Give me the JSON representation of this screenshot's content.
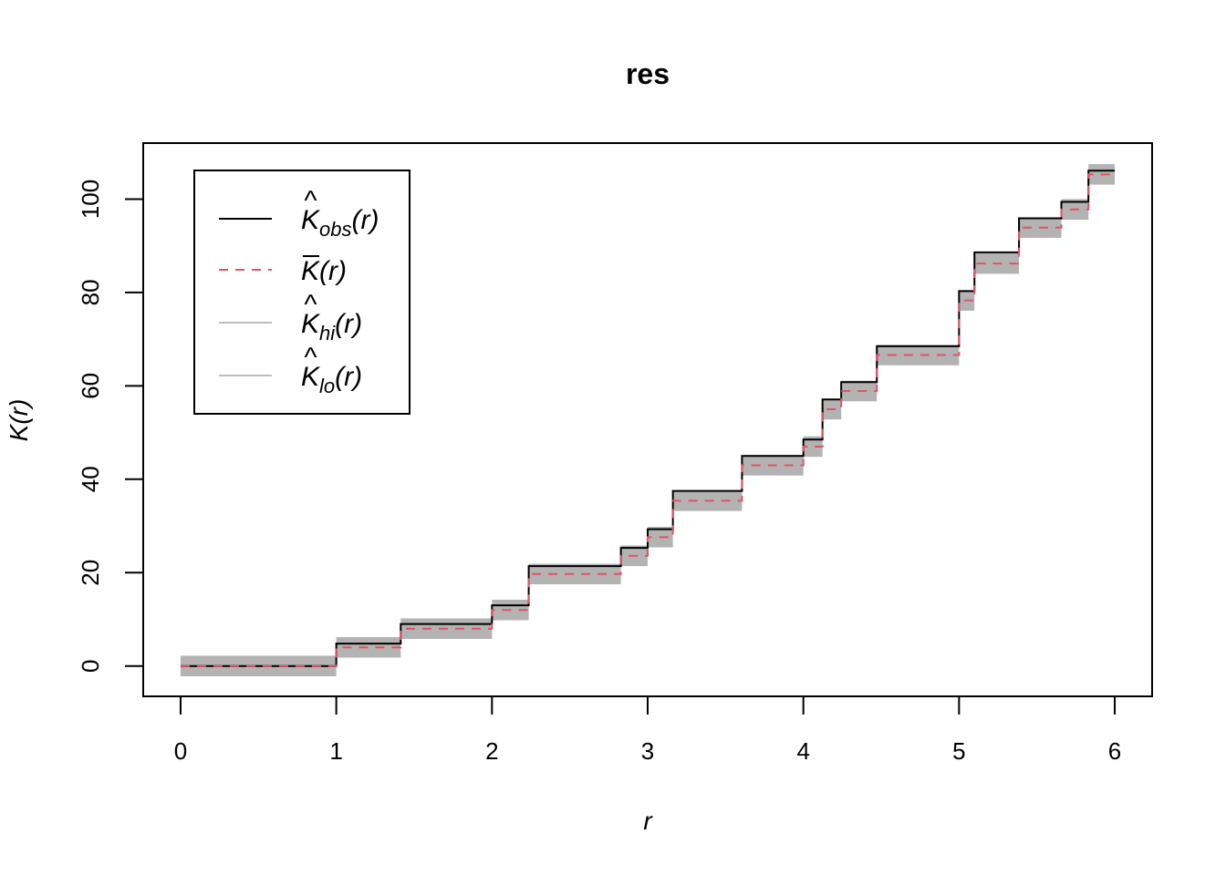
{
  "chart_data": {
    "type": "line",
    "title": "res",
    "xlabel": "r",
    "ylabel_main": "K",
    "ylabel_arg": "(r)",
    "xlim": [
      -0.24,
      6.24
    ],
    "ylim": [
      -6.5,
      112
    ],
    "x_ticks": [
      0,
      1,
      2,
      3,
      4,
      5,
      6
    ],
    "y_ticks": [
      0,
      20,
      40,
      60,
      80,
      100
    ],
    "legend_position": "top-left",
    "grid": false,
    "legend": [
      {
        "main": "K",
        "hat": "^",
        "sub": "obs",
        "arg": "(r)",
        "color": "#000000",
        "dash": "solid"
      },
      {
        "main": "K",
        "bar": "‾",
        "sub": "",
        "arg": "(r)",
        "color": "#DF536B",
        "dash": "dashed"
      },
      {
        "main": "K",
        "hat": "^",
        "sub": "hi",
        "arg": "(r)",
        "color": "#BEBEBE",
        "dash": "solid"
      },
      {
        "main": "K",
        "hat": "^",
        "sub": "lo",
        "arg": "(r)",
        "color": "#BEBEBE",
        "dash": "solid"
      }
    ],
    "colors": {
      "obs": "#000000",
      "theo": "#DF536B",
      "envelope": "#B3B3B3"
    },
    "series": [
      {
        "name": "obs",
        "x": [
          0,
          1,
          1.414,
          2,
          2.236,
          2.828,
          3,
          3.162,
          3.606,
          4,
          4.123,
          4.243,
          4.472,
          5,
          5.099,
          5.385,
          5.657,
          5.831,
          6
        ],
        "y": [
          0,
          4.8,
          9.0,
          13.0,
          21.4,
          25.3,
          29.3,
          37.5,
          45.0,
          48.5,
          57.1,
          60.8,
          68.5,
          80.3,
          88.6,
          95.9,
          99.4,
          106.1,
          106.1
        ]
      },
      {
        "name": "theo",
        "x": [
          0,
          1,
          1.414,
          2,
          2.236,
          2.828,
          3,
          3.162,
          3.606,
          4,
          4.123,
          4.243,
          4.472,
          5,
          5.099,
          5.385,
          5.657,
          5.831,
          6
        ],
        "y": [
          0,
          4.0,
          8.0,
          12.0,
          19.7,
          23.6,
          27.6,
          35.4,
          43.0,
          47.0,
          55.0,
          58.9,
          66.6,
          78.3,
          86.2,
          93.9,
          97.8,
          105.3,
          105.3
        ]
      },
      {
        "name": "hi",
        "x": [
          0,
          1,
          1.414,
          2,
          2.236,
          2.828,
          3,
          3.162,
          3.606,
          4,
          4.123,
          4.243,
          4.472,
          5,
          5.099,
          5.385,
          5.657,
          5.831,
          6
        ],
        "y": [
          2.2,
          6.2,
          10.2,
          14.2,
          21.9,
          25.8,
          29.8,
          37.6,
          45.2,
          49.2,
          57.2,
          61.1,
          68.8,
          80.5,
          88.4,
          96.1,
          100.0,
          107.5,
          107.5
        ]
      },
      {
        "name": "lo",
        "x": [
          0,
          1,
          1.414,
          2,
          2.236,
          2.828,
          3,
          3.162,
          3.606,
          4,
          4.123,
          4.243,
          4.472,
          5,
          5.099,
          5.385,
          5.657,
          5.831,
          6
        ],
        "y": [
          -2.2,
          1.8,
          5.8,
          9.8,
          17.5,
          21.4,
          25.4,
          33.2,
          40.8,
          44.8,
          52.8,
          56.7,
          64.4,
          76.1,
          84.0,
          91.7,
          95.6,
          103.1,
          103.1
        ]
      }
    ]
  }
}
